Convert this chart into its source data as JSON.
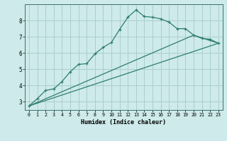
{
  "xlabel": "Humidex (Indice chaleur)",
  "ylabel": "",
  "bg_color": "#ceeaea",
  "line_color": "#2e7d6e",
  "grid_color": "#aacfcf",
  "xlim": [
    -0.5,
    23.5
  ],
  "ylim": [
    2.5,
    9.0
  ],
  "xticks": [
    0,
    1,
    2,
    3,
    4,
    5,
    6,
    7,
    8,
    9,
    10,
    11,
    12,
    13,
    14,
    15,
    16,
    17,
    18,
    19,
    20,
    21,
    22,
    23
  ],
  "yticks": [
    3,
    4,
    5,
    6,
    7,
    8
  ],
  "line1_x": [
    0,
    1,
    2,
    3,
    4,
    5,
    6,
    7,
    8,
    9,
    10,
    11,
    12,
    13,
    14,
    15,
    16,
    17,
    18,
    19,
    20,
    21,
    22,
    23
  ],
  "line1_y": [
    2.75,
    3.2,
    3.7,
    3.8,
    4.25,
    4.85,
    5.3,
    5.35,
    5.95,
    6.35,
    6.65,
    7.45,
    8.2,
    8.65,
    8.25,
    8.2,
    8.1,
    7.9,
    7.5,
    7.5,
    7.1,
    6.9,
    6.85,
    6.6
  ],
  "line2_x": [
    0,
    23
  ],
  "line2_y": [
    2.75,
    6.6
  ],
  "line3_x": [
    0,
    20,
    23
  ],
  "line3_y": [
    2.75,
    7.1,
    6.6
  ]
}
